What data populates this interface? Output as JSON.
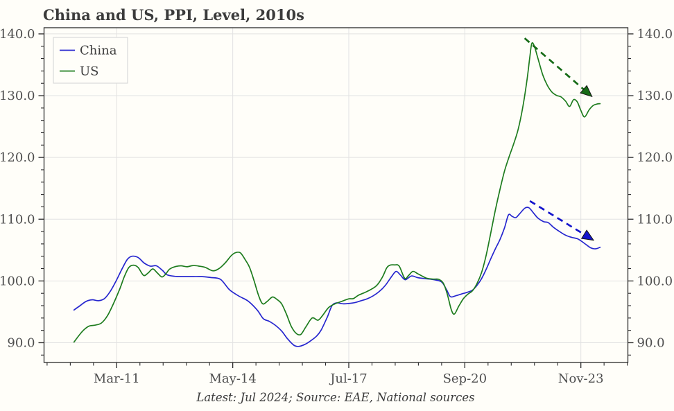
{
  "chart": {
    "title": "China and US, PPI, Level, 2010s",
    "caption": "Latest: Jul 2024; Source: EAE, National sources"
  },
  "colors": {
    "background": "#fffef9",
    "china_line": "#2626cf",
    "us_line": "#1e7c1e",
    "china_arrow": "#1414cc",
    "us_arrow": "#156a15",
    "grid": "#e2e2e2",
    "spine": "#2a2a2a",
    "tick_text": "#4e4e4e",
    "title_text": "#3b3b3b"
  },
  "chart_data": {
    "type": "line",
    "title": "China and US, PPI, Level, 2010s",
    "caption": "Latest: Jul 2024; Source: EAE, National sources",
    "legend_position": "upper-left",
    "grid": true,
    "x_axis": {
      "unit": "months_since_2010_01",
      "range": [
        -9.8,
        181.4
      ],
      "major_ticks": [
        {
          "m": 14,
          "label": "Mar-11"
        },
        {
          "m": 52,
          "label": "May-14"
        },
        {
          "m": 90,
          "label": "Jul-17"
        },
        {
          "m": 128,
          "label": "Sep-20"
        },
        {
          "m": 166,
          "label": "Nov-23"
        }
      ],
      "minor_step_months": 7.6
    },
    "y_axis": {
      "range": [
        86.8,
        141.0
      ],
      "major_ticks": [
        90,
        100,
        110,
        120,
        130,
        140
      ],
      "major_tick_labels": [
        "90.0",
        "100.0",
        "110.0",
        "120.0",
        "130.0",
        "140.0"
      ],
      "minor_step": 2,
      "sides": [
        "left",
        "right"
      ]
    },
    "series": [
      {
        "name": "China",
        "color": "#2626cf",
        "points": [
          [
            0,
            95.3
          ],
          [
            2,
            96.0
          ],
          [
            4,
            96.7
          ],
          [
            6,
            96.95
          ],
          [
            8,
            96.8
          ],
          [
            10,
            97.15
          ],
          [
            12,
            98.4
          ],
          [
            14,
            100.2
          ],
          [
            16,
            102.2
          ],
          [
            17.5,
            103.5
          ],
          [
            19,
            104.0
          ],
          [
            21,
            103.8
          ],
          [
            23,
            102.9
          ],
          [
            25,
            102.4
          ],
          [
            27,
            102.45
          ],
          [
            29,
            101.7
          ],
          [
            30.5,
            101.0
          ],
          [
            33,
            100.75
          ],
          [
            36,
            100.7
          ],
          [
            39,
            100.7
          ],
          [
            42,
            100.7
          ],
          [
            45,
            100.55
          ],
          [
            48,
            100.25
          ],
          [
            51,
            98.55
          ],
          [
            54,
            97.55
          ],
          [
            57,
            96.75
          ],
          [
            60,
            95.3
          ],
          [
            62,
            93.9
          ],
          [
            64,
            93.45
          ],
          [
            66,
            92.8
          ],
          [
            68,
            91.9
          ],
          [
            70,
            90.6
          ],
          [
            72,
            89.6
          ],
          [
            73.5,
            89.4
          ],
          [
            75.5,
            89.7
          ],
          [
            77.5,
            90.3
          ],
          [
            79.5,
            91.1
          ],
          [
            81,
            92.1
          ],
          [
            83,
            94.2
          ],
          [
            84.5,
            96.0
          ],
          [
            86,
            96.45
          ],
          [
            88,
            96.3
          ],
          [
            90,
            96.35
          ],
          [
            92,
            96.5
          ],
          [
            94,
            96.8
          ],
          [
            96,
            97.1
          ],
          [
            98,
            97.6
          ],
          [
            100,
            98.3
          ],
          [
            102,
            99.3
          ],
          [
            104,
            100.7
          ],
          [
            105.5,
            101.55
          ],
          [
            107,
            100.9
          ],
          [
            108.5,
            100.2
          ],
          [
            110.5,
            100.8
          ],
          [
            112.5,
            100.55
          ],
          [
            114.5,
            100.4
          ],
          [
            116.5,
            100.3
          ],
          [
            118.5,
            100.15
          ],
          [
            120.5,
            99.8
          ],
          [
            122,
            98.6
          ],
          [
            123.3,
            97.45
          ],
          [
            125,
            97.6
          ],
          [
            127,
            97.9
          ],
          [
            129,
            98.2
          ],
          [
            130.5,
            98.5
          ],
          [
            132,
            99.3
          ],
          [
            133.5,
            100.4
          ],
          [
            135,
            101.9
          ],
          [
            136.5,
            103.6
          ],
          [
            138,
            105.2
          ],
          [
            139.5,
            106.7
          ],
          [
            141,
            108.6
          ],
          [
            142.3,
            110.7
          ],
          [
            143.5,
            110.45
          ],
          [
            144.7,
            110.25
          ],
          [
            146,
            110.9
          ],
          [
            147.7,
            111.8
          ],
          [
            149,
            111.85
          ],
          [
            150.5,
            111.0
          ],
          [
            152,
            110.15
          ],
          [
            153.8,
            109.6
          ],
          [
            155.3,
            109.45
          ],
          [
            157,
            108.7
          ],
          [
            159,
            108.0
          ],
          [
            161,
            107.4
          ],
          [
            163,
            107.05
          ],
          [
            164.8,
            106.85
          ],
          [
            166.3,
            106.4
          ],
          [
            167.8,
            105.85
          ],
          [
            169.3,
            105.35
          ],
          [
            170.8,
            105.2
          ],
          [
            172.3,
            105.45
          ]
        ]
      },
      {
        "name": "US",
        "color": "#1e7c1e",
        "points": [
          [
            0,
            90.1
          ],
          [
            2,
            91.4
          ],
          [
            3.5,
            92.2
          ],
          [
            5,
            92.7
          ],
          [
            7,
            92.85
          ],
          [
            9,
            93.2
          ],
          [
            11,
            94.4
          ],
          [
            13,
            96.4
          ],
          [
            15,
            98.7
          ],
          [
            16.5,
            100.7
          ],
          [
            18,
            102.2
          ],
          [
            19.5,
            102.55
          ],
          [
            21,
            102.2
          ],
          [
            22.8,
            100.9
          ],
          [
            24.3,
            101.3
          ],
          [
            25.8,
            101.95
          ],
          [
            27.3,
            101.3
          ],
          [
            28.8,
            100.65
          ],
          [
            30,
            101.1
          ],
          [
            31.3,
            101.9
          ],
          [
            33,
            102.3
          ],
          [
            35,
            102.45
          ],
          [
            37,
            102.3
          ],
          [
            39,
            102.5
          ],
          [
            41,
            102.4
          ],
          [
            43,
            102.2
          ],
          [
            45.5,
            101.65
          ],
          [
            47.5,
            102.0
          ],
          [
            49.5,
            102.9
          ],
          [
            51.5,
            104.1
          ],
          [
            53,
            104.6
          ],
          [
            54.5,
            104.55
          ],
          [
            56,
            103.5
          ],
          [
            57.5,
            102.2
          ],
          [
            59,
            100.0
          ],
          [
            60.5,
            97.6
          ],
          [
            61.8,
            96.3
          ],
          [
            63.3,
            96.7
          ],
          [
            65,
            97.4
          ],
          [
            66.5,
            97.0
          ],
          [
            68,
            96.3
          ],
          [
            69.6,
            94.6
          ],
          [
            71.2,
            92.6
          ],
          [
            72.8,
            91.5
          ],
          [
            74.3,
            91.35
          ],
          [
            76,
            92.6
          ],
          [
            78,
            94.0
          ],
          [
            79.9,
            93.65
          ],
          [
            81.4,
            94.4
          ],
          [
            83.4,
            95.7
          ],
          [
            85.5,
            96.3
          ],
          [
            88,
            96.75
          ],
          [
            90,
            97.1
          ],
          [
            91.5,
            97.15
          ],
          [
            93.2,
            97.7
          ],
          [
            96,
            98.3
          ],
          [
            99,
            99.2
          ],
          [
            101,
            100.6
          ],
          [
            102.4,
            102.1
          ],
          [
            103.5,
            102.55
          ],
          [
            105,
            102.6
          ],
          [
            106.5,
            102.4
          ],
          [
            108.3,
            100.45
          ],
          [
            109.6,
            100.9
          ],
          [
            111,
            101.55
          ],
          [
            112.5,
            101.2
          ],
          [
            114,
            100.8
          ],
          [
            115.5,
            100.45
          ],
          [
            117.5,
            100.3
          ],
          [
            119.5,
            100.25
          ],
          [
            121,
            99.6
          ],
          [
            122.3,
            97.8
          ],
          [
            123.6,
            95.3
          ],
          [
            124.6,
            94.65
          ],
          [
            126,
            95.9
          ],
          [
            127.5,
            97.1
          ],
          [
            129,
            97.85
          ],
          [
            130.5,
            98.4
          ],
          [
            132,
            99.6
          ],
          [
            133.5,
            101.4
          ],
          [
            135,
            104.2
          ],
          [
            136.5,
            107.8
          ],
          [
            138,
            111.5
          ],
          [
            139.5,
            114.8
          ],
          [
            141,
            117.8
          ],
          [
            142.5,
            120.1
          ],
          [
            144,
            122.2
          ],
          [
            145.5,
            124.6
          ],
          [
            147,
            128.2
          ],
          [
            148.3,
            132.3
          ],
          [
            149.2,
            135.9
          ],
          [
            149.9,
            138.4
          ],
          [
            150.7,
            138.1
          ],
          [
            151.8,
            136.3
          ],
          [
            153.5,
            133.4
          ],
          [
            155,
            131.7
          ],
          [
            156.5,
            130.6
          ],
          [
            158,
            130.05
          ],
          [
            159.5,
            129.8
          ],
          [
            161,
            129.1
          ],
          [
            162.3,
            128.25
          ],
          [
            163.6,
            129.35
          ],
          [
            164.8,
            129.0
          ],
          [
            166,
            127.6
          ],
          [
            167.2,
            126.55
          ],
          [
            168.7,
            127.7
          ],
          [
            170,
            128.4
          ],
          [
            171.3,
            128.65
          ],
          [
            172.3,
            128.7
          ]
        ]
      }
    ],
    "annotations": [
      {
        "type": "dashed-arrow",
        "series": "US",
        "color": "#156a15",
        "from_m": 147.6,
        "from_v": 139.3,
        "to_m": 168.6,
        "to_v": 130.3
      },
      {
        "type": "dashed-arrow",
        "series": "China",
        "color": "#1414cc",
        "from_m": 149.3,
        "from_v": 112.95,
        "to_m": 169.0,
        "to_v": 106.95
      }
    ]
  }
}
